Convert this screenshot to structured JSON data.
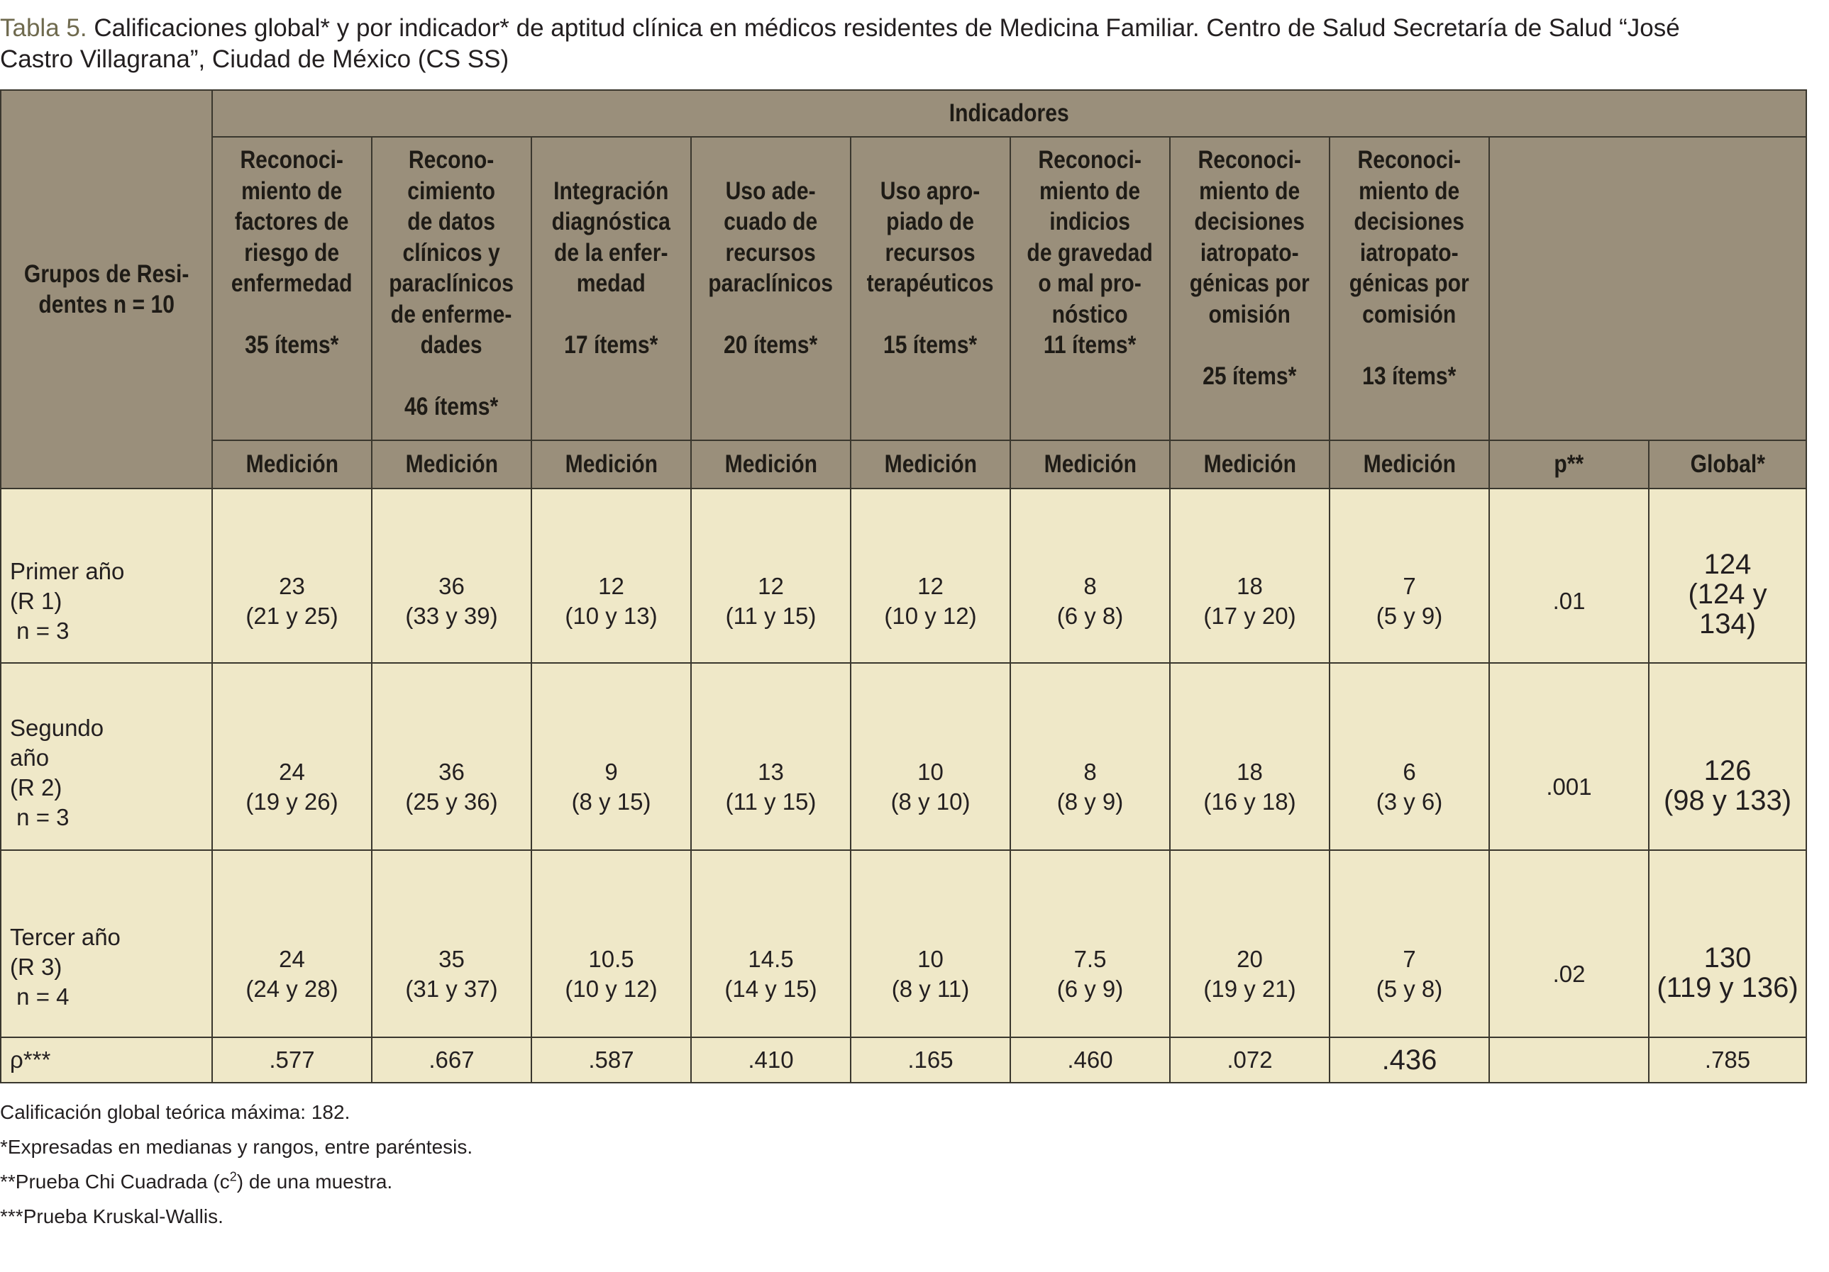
{
  "caption": {
    "label": "Tabla 5.",
    "text": " Calificaciones global* y por indicador* de aptitud clínica en médicos residentes de Medicina Familiar. Centro de Salud Secretaría de Salud “José",
    "text_line2": "Castro Villagrana”, Ciudad de México (CS SS)"
  },
  "table": {
    "group_header": [
      "Grupos de Resi-",
      "dentes n = 10"
    ],
    "indicadores_label": "Indicadores",
    "indicators": [
      {
        "lines": [
          "Reconoci-",
          "miento de",
          "factores de",
          "riesgo de",
          "enfermedad",
          "",
          "35 ítems*"
        ]
      },
      {
        "lines": [
          "Recono-",
          "cimiento",
          "de datos",
          "clínicos y",
          "paraclínicos",
          "de enferme-",
          "dades",
          "",
          "46 ítems*"
        ]
      },
      {
        "lines": [
          "",
          "Integración",
          "diagnóstica",
          "de la enfer-",
          "medad",
          "",
          "17 ítems*"
        ]
      },
      {
        "lines": [
          "",
          "Uso ade-",
          "cuado de",
          "recursos",
          "paraclínicos",
          "",
          "20 ítems*"
        ]
      },
      {
        "lines": [
          "",
          "Uso apro-",
          "piado de",
          "recursos",
          "terapéuticos",
          "",
          "15 ítems*"
        ]
      },
      {
        "lines": [
          "Reconoci-",
          "miento de",
          "indicios",
          "de gravedad",
          "o mal pro-",
          "nóstico",
          "11 ítems*"
        ]
      },
      {
        "lines": [
          "Reconoci-",
          "miento de",
          "decisiones",
          "iatropato-",
          "génicas por",
          "omisión",
          "",
          "25 ítems*"
        ]
      },
      {
        "lines": [
          "Reconoci-",
          "miento de",
          "decisiones",
          "iatropato-",
          "génicas por",
          "comisión",
          "",
          "13 ítems*"
        ]
      }
    ],
    "medicion_label": "Medición",
    "p_label": "p**",
    "global_label": "Global*",
    "rows": [
      {
        "group": [
          "Primer año",
          "(R 1)",
          " n = 3"
        ],
        "cells": [
          [
            "23",
            "(21 y 25)"
          ],
          [
            "36",
            "(33 y 39)"
          ],
          [
            "12",
            "(10 y 13)"
          ],
          [
            "12",
            "(11 y 15)"
          ],
          [
            "12",
            "(10 y 12)"
          ],
          [
            "8",
            "(6 y 8)"
          ],
          [
            "18",
            "(17 y 20)"
          ],
          [
            "7",
            "(5 y 9)"
          ]
        ],
        "p": ".01",
        "global": [
          "124",
          "(124 y",
          "134)"
        ]
      },
      {
        "group": [
          "Segundo",
          "año",
          "(R 2)",
          " n = 3"
        ],
        "cells": [
          [
            "24",
            "(19 y 26)"
          ],
          [
            "36",
            "(25 y 36)"
          ],
          [
            "9",
            "(8 y 15)"
          ],
          [
            "13",
            "(11 y 15)"
          ],
          [
            "10",
            "(8 y 10)"
          ],
          [
            "8",
            "(8 y 9)"
          ],
          [
            "18",
            "(16 y 18)"
          ],
          [
            "6",
            "(3 y 6)"
          ]
        ],
        "p": ".001",
        "global": [
          "126",
          "(98 y 133)"
        ]
      },
      {
        "group": [
          "Tercer año",
          "(R 3)",
          " n = 4"
        ],
        "cells": [
          [
            "24",
            "(24 y 28)"
          ],
          [
            "35",
            "(31 y 37)"
          ],
          [
            "10.5",
            "(10 y 12)"
          ],
          [
            "14.5",
            "(14 y 15)"
          ],
          [
            "10",
            "(8 y 11)"
          ],
          [
            "7.5",
            "(6 y 9)"
          ],
          [
            "20",
            "(19 y 21)"
          ],
          [
            "7",
            "(5 y 8)"
          ]
        ],
        "p": ".02",
        "global": [
          "130",
          "(119 y 136)"
        ]
      }
    ],
    "rho": {
      "label": "ρ***",
      "values": [
        ".577",
        ".667",
        ".587",
        ".410",
        ".165",
        ".460",
        ".072",
        ".436"
      ],
      "p": "",
      "global": ".785"
    }
  },
  "notes": {
    "n1": "Calificación global teórica máxima: 182.",
    "n2": "*Expresadas en medianas y rangos, entre paréntesis.",
    "n3_a": "**Prueba Chi Cuadrada (c",
    "n3_sup": "2",
    "n3_b": ") de una muestra.",
    "n4": "***Prueba Kruskal-Wallis."
  }
}
